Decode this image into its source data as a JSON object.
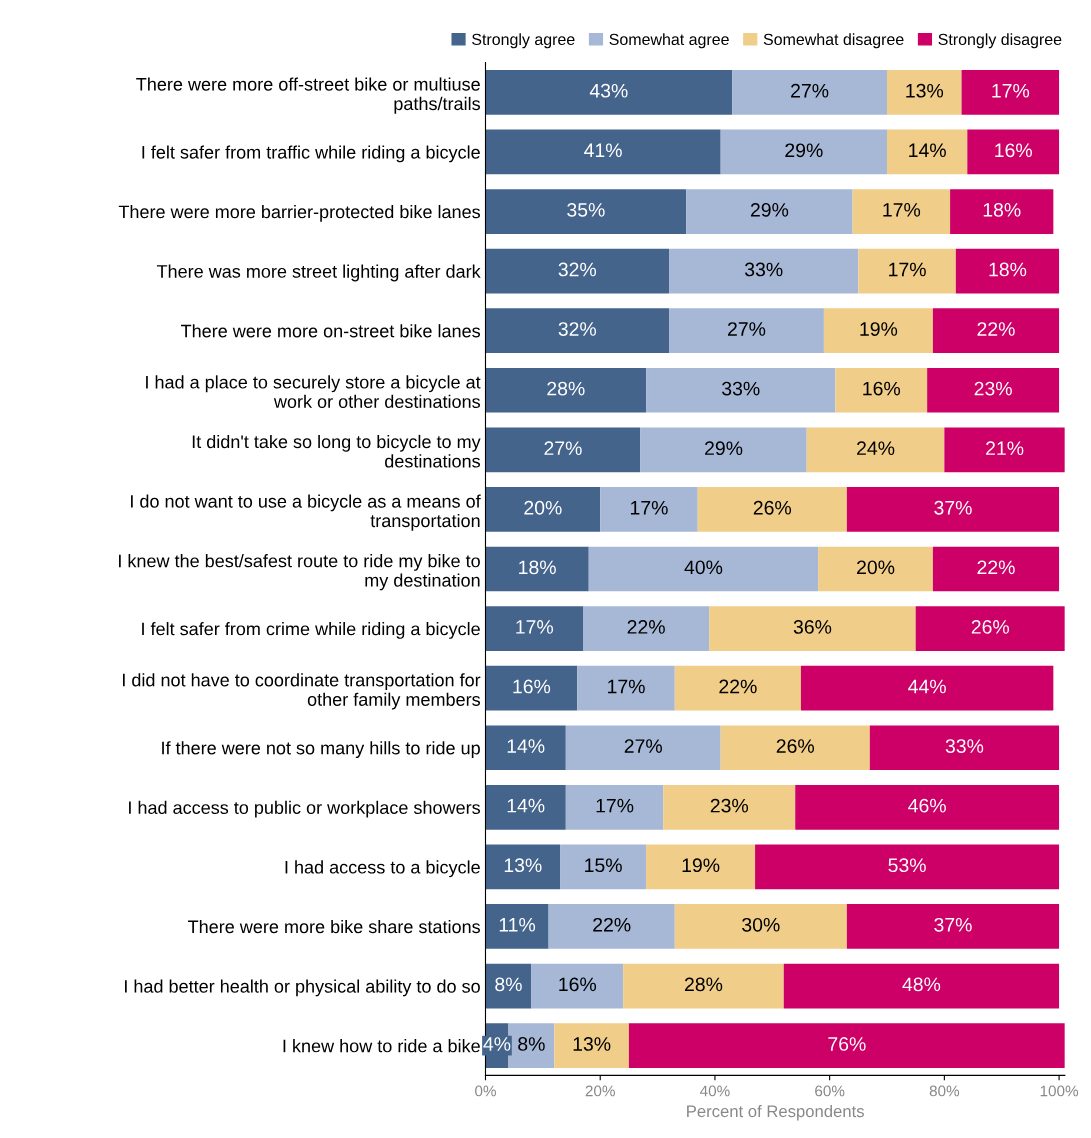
{
  "chart_data": {
    "type": "bar",
    "orientation": "horizontal",
    "stacked": true,
    "categories": [
      "There were more off-street bike or multiuse\npaths/trails",
      "I felt safer from traffic while riding a bicycle",
      "There were more barrier-protected bike lanes",
      "There was more street lighting after dark",
      "There were more on-street bike lanes",
      "I had a place to securely store a bicycle at\nwork or other destinations",
      "It didn't take so long to bicycle to my\ndestinations",
      "I do not want to use a bicycle as a means of\ntransportation",
      "I knew the best/safest route to ride my bike to\nmy destination",
      "I felt safer from crime while riding a bicycle",
      "I did not have to coordinate transportation for\nother family members",
      "If there were not so many hills to ride up",
      "I had access to public or workplace showers",
      "I had access to a bicycle",
      "There were more bike share stations",
      "I had better health or physical ability to do so",
      "I knew how to ride a bike"
    ],
    "series": [
      {
        "name": "Strongly agree",
        "color": "#44648c",
        "values": [
          43,
          41,
          35,
          32,
          32,
          28,
          27,
          20,
          18,
          17,
          16,
          14,
          14,
          13,
          11,
          8,
          4
        ],
        "value_labels": [
          "43%",
          "41%",
          "35%",
          "32%",
          "32%",
          "28%",
          "27%",
          "20%",
          "18%",
          "17%",
          "16%",
          "14%",
          "14%",
          "13%",
          "11%",
          "8%",
          "4%"
        ]
      },
      {
        "name": "Somewhat agree",
        "color": "#a6b8d6",
        "values": [
          27,
          29,
          29,
          33,
          27,
          33,
          29,
          17,
          40,
          22,
          17,
          27,
          17,
          15,
          22,
          16,
          8
        ],
        "value_labels": [
          "27%",
          "29%",
          "29%",
          "33%",
          "27%",
          "33%",
          "29%",
          "17%",
          "40%",
          "22%",
          "17%",
          "27%",
          "17%",
          "15%",
          "22%",
          "16%",
          "8%"
        ]
      },
      {
        "name": "Somewhat disagree",
        "color": "#f0cd88",
        "values": [
          13,
          14,
          17,
          17,
          19,
          16,
          24,
          26,
          20,
          36,
          22,
          26,
          23,
          19,
          30,
          28,
          13
        ],
        "value_labels": [
          "13%",
          "14%",
          "17%",
          "17%",
          "19%",
          "16%",
          "24%",
          "26%",
          "20%",
          "36%",
          "22%",
          "26%",
          "23%",
          "19%",
          "30%",
          "28%",
          "13%"
        ]
      },
      {
        "name": "Strongly disagree",
        "color": "#cc0066",
        "values": [
          17,
          16,
          18,
          18,
          22,
          23,
          21,
          37,
          22,
          26,
          44,
          33,
          46,
          53,
          37,
          48,
          76
        ],
        "value_labels": [
          "17%",
          "16%",
          "18%",
          "18%",
          "22%",
          "23%",
          "21%",
          "37%",
          "22%",
          "26%",
          "44%",
          "33%",
          "46%",
          "53%",
          "37%",
          "48%",
          "76%"
        ]
      }
    ],
    "xlabel": "Percent of Respondents",
    "xlim": [
      0,
      101
    ],
    "xticks": [
      {
        "value": 0,
        "label": "0%"
      },
      {
        "value": 20,
        "label": "20%"
      },
      {
        "value": 40,
        "label": "40%"
      },
      {
        "value": 60,
        "label": "60%"
      },
      {
        "value": 80,
        "label": "80%"
      },
      {
        "value": 100,
        "label": "100%"
      }
    ],
    "grid": false,
    "legend": "top right"
  }
}
